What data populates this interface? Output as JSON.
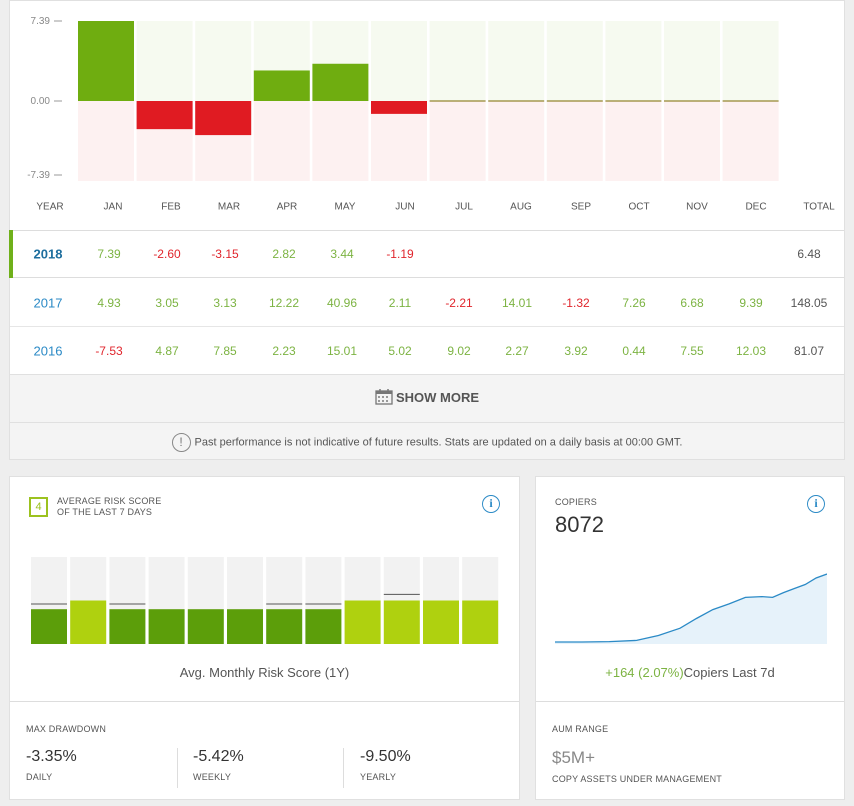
{
  "chart_data": [
    {
      "type": "bar",
      "categories": [
        "JAN",
        "FEB",
        "MAR",
        "APR",
        "MAY",
        "JUN",
        "JUL",
        "AUG",
        "SEP",
        "OCT",
        "NOV",
        "DEC"
      ],
      "values": [
        7.39,
        -2.6,
        -3.15,
        2.82,
        3.44,
        -1.19,
        0,
        0,
        0,
        0,
        0,
        0
      ],
      "yticks": [
        "7.39",
        "0.00",
        "-7.39"
      ],
      "ylim": [
        -7.39,
        7.39
      ],
      "colors": {
        "positive": "#6fad10",
        "negative": "#e01b22",
        "positive_bg": "#f6faf0",
        "negative_bg": "#fdf1f1",
        "flat_line": "#7a6a00"
      }
    },
    {
      "type": "bar",
      "categories": [
        "",
        "",
        "",
        "",
        "",
        "",
        "",
        "",
        "",
        "",
        "",
        ""
      ],
      "values": [
        4,
        5,
        4,
        4,
        4,
        4,
        4,
        4,
        5,
        5,
        5,
        5
      ],
      "markers": [
        4.6,
        null,
        4.6,
        null,
        null,
        null,
        4.6,
        4.6,
        null,
        5.7,
        null,
        null
      ],
      "ylim": [
        0,
        10
      ],
      "colors": {
        "level_4": "#5c9e0a",
        "level_5": "#afd10f",
        "background": "#f2f2f2",
        "marker": "#555555"
      }
    },
    {
      "type": "area",
      "x": [
        0,
        10,
        20,
        30,
        38,
        46,
        52,
        58,
        64,
        70,
        76,
        80,
        84,
        88,
        92,
        96,
        100
      ],
      "y": [
        0,
        0,
        0.5,
        2,
        8,
        17,
        29,
        40,
        47,
        55,
        56,
        55,
        61,
        66,
        71,
        79,
        84
      ],
      "colors": {
        "line": "#2b8ac6",
        "fill": "#e6f2fa"
      }
    }
  ],
  "performance": {
    "header": {
      "year": "YEAR",
      "total": "TOTAL"
    },
    "rows": [
      {
        "year": "2018",
        "values": [
          "7.39",
          "-2.60",
          "-3.15",
          "2.82",
          "3.44",
          "-1.19",
          "",
          "",
          "",
          "",
          "",
          ""
        ],
        "total": "6.48"
      },
      {
        "year": "2017",
        "values": [
          "4.93",
          "3.05",
          "3.13",
          "12.22",
          "40.96",
          "2.11",
          "-2.21",
          "14.01",
          "-1.32",
          "7.26",
          "6.68",
          "9.39"
        ],
        "total": "148.05"
      },
      {
        "year": "2016",
        "values": [
          "-7.53",
          "4.87",
          "7.85",
          "2.23",
          "15.01",
          "5.02",
          "9.02",
          "2.27",
          "3.92",
          "0.44",
          "7.55",
          "12.03"
        ],
        "total": "81.07"
      }
    ],
    "show_more": "SHOW MORE",
    "disclaimer_icon": "!",
    "disclaimer": "Past performance is not indicative of future results. Stats are updated on a daily basis at 00:00 GMT."
  },
  "risk": {
    "badge": "4",
    "title_line1": "AVERAGE RISK SCORE",
    "title_line2": "OF THE LAST 7 DAYS",
    "info_icon": "i",
    "caption": "Avg. Monthly Risk Score (1Y)",
    "drawdown_label": "MAX DRAWDOWN",
    "drawdowns": [
      {
        "value": "-3.35%",
        "label": "DAILY"
      },
      {
        "value": "-5.42%",
        "label": "WEEKLY"
      },
      {
        "value": "-9.50%",
        "label": "YEARLY"
      }
    ]
  },
  "copiers": {
    "label": "COPIERS",
    "count": "8072",
    "info_icon": "i",
    "change": "+164 (2.07%)",
    "change_label": "Copiers Last 7d",
    "aum_label": "AUM RANGE",
    "aum_value": "$5M+",
    "aum_sub": "COPY ASSETS UNDER MANAGEMENT"
  }
}
